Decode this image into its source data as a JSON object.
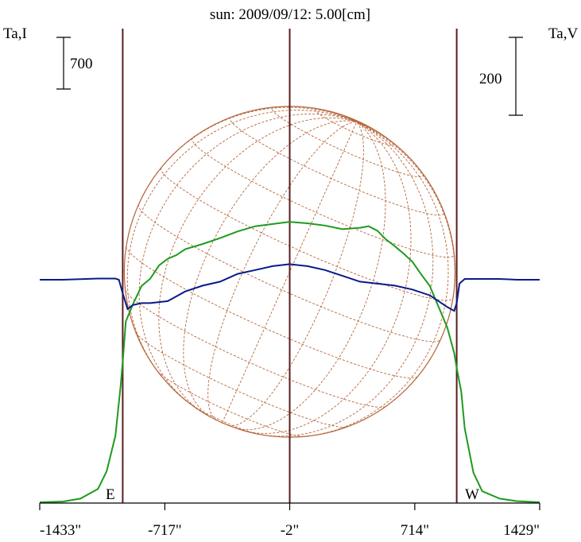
{
  "title": "sun: 2009/09/12: 5.00[cm]",
  "left_label": "Ta,I",
  "right_label": "Ta,V",
  "scalebars": {
    "left_value": "700",
    "right_value": "200"
  },
  "markers": {
    "east": "E",
    "west": "W"
  },
  "colors": {
    "title": "#1a2a8a",
    "intensity": "#1f9a1f",
    "polarization": "#0a1a8a",
    "grid": "#b5653a",
    "frame": "#000000",
    "limb_lines": "#5a1e1e"
  },
  "chart_data": {
    "type": "line",
    "title": "sun: 2009/09/12: 5.00[cm]",
    "x_unit": "arcsec",
    "x_ticks": [
      {
        "value": -1433,
        "label": "-1433\""
      },
      {
        "value": -717,
        "label": "-717\""
      },
      {
        "value": -2,
        "label": "-2\""
      },
      {
        "value": 714,
        "label": "714\""
      },
      {
        "value": 1429,
        "label": "1429\""
      }
    ],
    "xlim": [
      -1433,
      1429
    ],
    "limb_positions": [
      -958,
      954
    ],
    "scale_bars": {
      "stokes_I": 700,
      "stokes_V": 200
    },
    "series": [
      {
        "name": "Ta,I",
        "x": [
          -1433,
          -1300,
          -1200,
          -1100,
          -1050,
          -1000,
          -970,
          -958,
          -940,
          -900,
          -850,
          -800,
          -750,
          -700,
          -650,
          -600,
          -500,
          -400,
          -300,
          -200,
          -100,
          -2,
          100,
          200,
          300,
          400,
          450,
          500,
          550,
          600,
          650,
          700,
          750,
          800,
          850,
          900,
          940,
          954,
          980,
          1000,
          1050,
          1100,
          1200,
          1300,
          1429
        ],
        "y": [
          0,
          10,
          50,
          180,
          420,
          900,
          1580,
          1900,
          2450,
          2680,
          2930,
          3030,
          3210,
          3300,
          3350,
          3430,
          3500,
          3580,
          3670,
          3740,
          3770,
          3800,
          3780,
          3750,
          3700,
          3720,
          3740,
          3680,
          3560,
          3470,
          3370,
          3260,
          3090,
          2930,
          2650,
          2370,
          2020,
          1820,
          1500,
          1000,
          400,
          150,
          50,
          15,
          0
        ]
      },
      {
        "name": "Ta,V",
        "x": [
          -1433,
          -1300,
          -1100,
          -1000,
          -980,
          -958,
          -930,
          -900,
          -850,
          -800,
          -700,
          -600,
          -500,
          -400,
          -300,
          -200,
          -100,
          -2,
          100,
          200,
          300,
          400,
          500,
          600,
          700,
          800,
          850,
          900,
          940,
          954,
          970,
          1000,
          1100,
          1200,
          1300,
          1429
        ],
        "y": [
          0,
          0,
          3,
          3,
          0,
          -35,
          -75,
          -65,
          -60,
          -60,
          -55,
          -30,
          -15,
          -5,
          15,
          25,
          35,
          40,
          35,
          25,
          10,
          -5,
          -10,
          -15,
          -25,
          -40,
          -55,
          -70,
          -80,
          -60,
          -10,
          2,
          2,
          2,
          0,
          0
        ]
      }
    ]
  }
}
